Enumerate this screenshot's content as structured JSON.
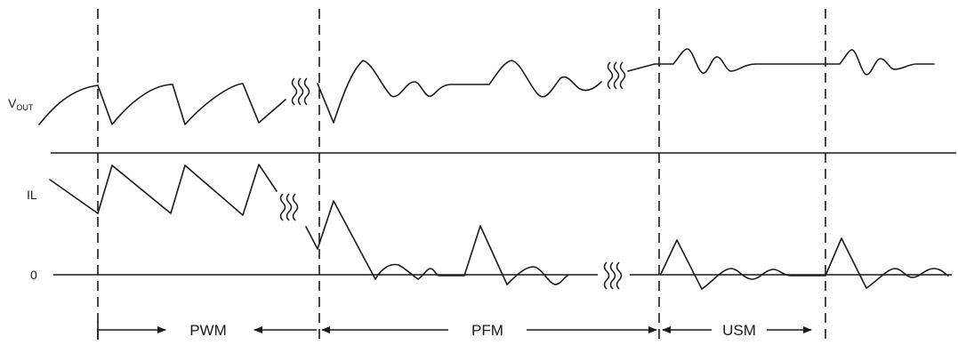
{
  "labels": {
    "vout_main": "V",
    "vout_sub": "OUT",
    "il": "IL",
    "zero": "0"
  },
  "modes": {
    "pwm": "PWM",
    "pfm": "PFM",
    "usm": "USM"
  }
}
